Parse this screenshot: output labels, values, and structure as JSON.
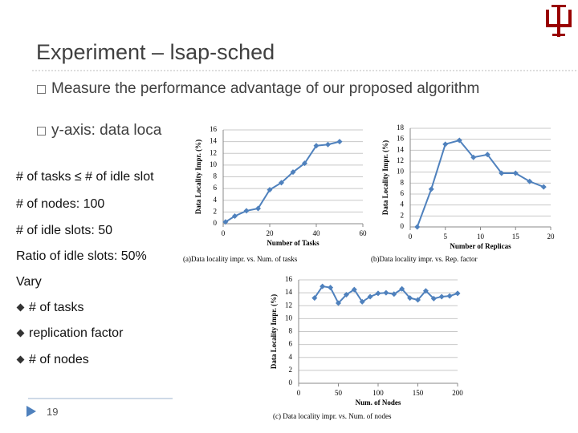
{
  "header": {
    "title": "Experiment – lsap-sched"
  },
  "bullets": [
    "Measure the performance advantage of our proposed algorithm",
    "y-axis: data loca"
  ],
  "notes": [
    "# of tasks ≤  # of idle slot",
    "# of nodes: 100",
    "# of idle slots: 50",
    "Ratio of idle slots: 50%",
    "Vary"
  ],
  "sub_bullets": [
    "# of tasks",
    "replication factor",
    "# of nodes"
  ],
  "page_number": "19",
  "chart_data": [
    {
      "type": "line",
      "caption": "(a)Data locality impr. vs. Num. of tasks",
      "xlabel": "Number of Tasks",
      "ylabel": "Data Locality Impr. (%)",
      "x": [
        1,
        5,
        10,
        15,
        20,
        25,
        30,
        35,
        40,
        45,
        50
      ],
      "values": [
        0.3,
        1.3,
        2.2,
        2.6,
        5.8,
        7,
        8.8,
        10.3,
        13.3,
        13.5,
        14
      ],
      "color": "#4f81bd",
      "xlim": [
        0,
        60
      ],
      "ylim": [
        0,
        16
      ],
      "xticks": [
        0,
        20,
        40,
        60
      ],
      "yticks": [
        0,
        2,
        4,
        6,
        8,
        10,
        12,
        14,
        16
      ],
      "grid": true
    },
    {
      "type": "line",
      "caption": "(b)Data locality impr. vs. Rep. factor",
      "xlabel": "Number of Replicas",
      "ylabel": "Data Locality Impr. (%)",
      "x": [
        1,
        3,
        5,
        7,
        9,
        11,
        13,
        15,
        17,
        19
      ],
      "values": [
        0,
        6.9,
        15.1,
        15.8,
        12.7,
        13.2,
        9.8,
        9.8,
        8.3,
        7.3
      ],
      "color": "#4f81bd",
      "xlim": [
        0,
        20
      ],
      "ylim": [
        0,
        18
      ],
      "xticks": [
        0,
        5,
        10,
        15,
        20
      ],
      "yticks": [
        0,
        2,
        4,
        6,
        8,
        10,
        12,
        14,
        16,
        18
      ],
      "grid": true
    },
    {
      "type": "line",
      "caption": "(c) Data locality impr. vs. Num. of nodes",
      "xlabel": "Num. of Nodes",
      "ylabel": "Data Locality Impr. (%)",
      "x": [
        20,
        30,
        40,
        50,
        60,
        70,
        80,
        90,
        100,
        110,
        120,
        130,
        140,
        150,
        160,
        170,
        180,
        190,
        200
      ],
      "values": [
        13.2,
        15,
        14.8,
        12.4,
        13.7,
        14.5,
        12.6,
        13.4,
        13.9,
        14,
        13.8,
        14.6,
        13.2,
        12.9,
        14.3,
        13.1,
        13.4,
        13.5,
        13.9
      ],
      "color": "#4f81bd",
      "xlim": [
        0,
        200
      ],
      "ylim": [
        0,
        16
      ],
      "xticks": [
        0,
        50,
        100,
        150,
        200
      ],
      "yticks": [
        0,
        2,
        4,
        6,
        8,
        10,
        12,
        14,
        16
      ],
      "grid": true
    }
  ]
}
